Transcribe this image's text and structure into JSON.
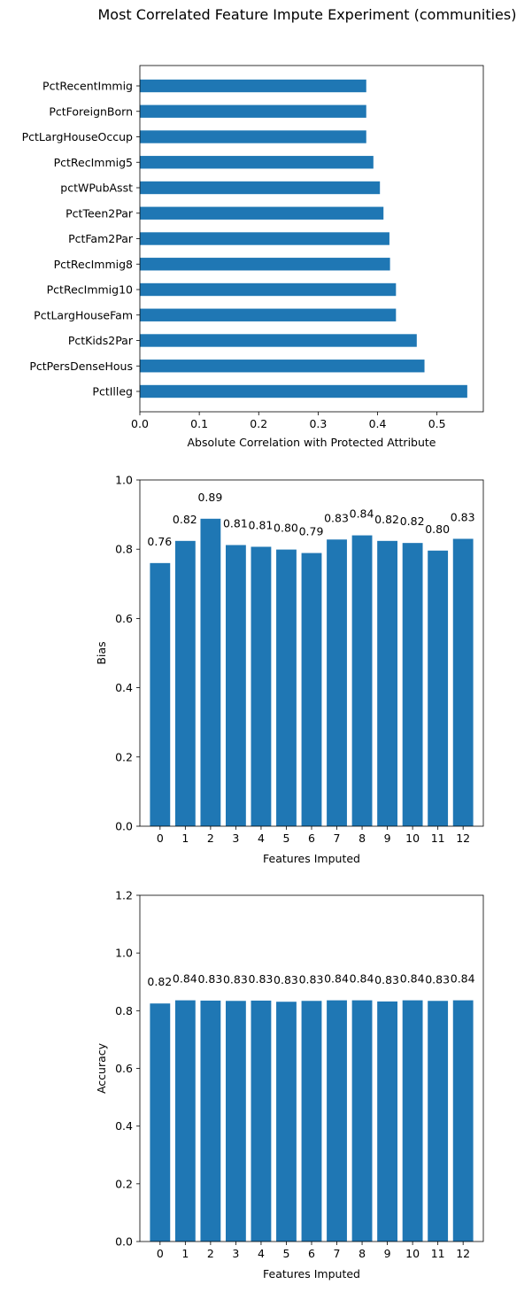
{
  "figure": {
    "title": "Most Correlated Feature Impute Experiment (communities)"
  },
  "colors": {
    "bar": "#1f77b4",
    "axis": "#000000"
  },
  "chart_data": [
    {
      "type": "bar",
      "orientation": "horizontal",
      "title": "",
      "xlabel": "Absolute Correlation with Protected Attribute",
      "ylabel": "",
      "xlim": [
        0,
        0.578
      ],
      "xticks": [
        "0.0",
        "0.1",
        "0.2",
        "0.3",
        "0.4",
        "0.5"
      ],
      "categories": [
        "PctIlleg",
        "PctPersDenseHous",
        "PctKids2Par",
        "PctLargHouseFam",
        "PctRecImmig10",
        "PctRecImmig8",
        "PctFam2Par",
        "PctTeen2Par",
        "pctWPubAsst",
        "PctRecImmig5",
        "PctLargHouseOccup",
        "PctForeignBorn",
        "PctRecentImmig"
      ],
      "values": [
        0.551,
        0.479,
        0.466,
        0.431,
        0.431,
        0.421,
        0.42,
        0.41,
        0.404,
        0.393,
        0.381,
        0.381,
        0.381
      ]
    },
    {
      "type": "bar",
      "title": "",
      "xlabel": "Features Imputed",
      "ylabel": "Bias",
      "ylim": [
        0,
        1.0
      ],
      "yticks": [
        "0.0",
        "0.2",
        "0.4",
        "0.6",
        "0.8",
        "1.0"
      ],
      "categories": [
        "0",
        "1",
        "2",
        "3",
        "4",
        "5",
        "6",
        "7",
        "8",
        "9",
        "10",
        "11",
        "12"
      ],
      "values": [
        0.76,
        0.824,
        0.888,
        0.812,
        0.807,
        0.799,
        0.789,
        0.828,
        0.84,
        0.824,
        0.818,
        0.796,
        0.83
      ],
      "labels": [
        "0.76",
        "0.82",
        "0.89",
        "0.81",
        "0.81",
        "0.80",
        "0.79",
        "0.83",
        "0.84",
        "0.82",
        "0.82",
        "0.80",
        "0.83"
      ]
    },
    {
      "type": "bar",
      "title": "",
      "xlabel": "Features Imputed",
      "ylabel": "Accuracy",
      "ylim": [
        0,
        1.2
      ],
      "yticks": [
        "0.0",
        "0.2",
        "0.4",
        "0.6",
        "0.8",
        "1.0",
        "1.2"
      ],
      "categories": [
        "0",
        "1",
        "2",
        "3",
        "4",
        "5",
        "6",
        "7",
        "8",
        "9",
        "10",
        "11",
        "12"
      ],
      "values": [
        0.825,
        0.836,
        0.835,
        0.834,
        0.835,
        0.831,
        0.834,
        0.836,
        0.836,
        0.832,
        0.836,
        0.834,
        0.836
      ],
      "labels": [
        "0.82",
        "0.84",
        "0.83",
        "0.83",
        "0.83",
        "0.83",
        "0.83",
        "0.84",
        "0.84",
        "0.83",
        "0.84",
        "0.83",
        "0.84"
      ]
    }
  ]
}
